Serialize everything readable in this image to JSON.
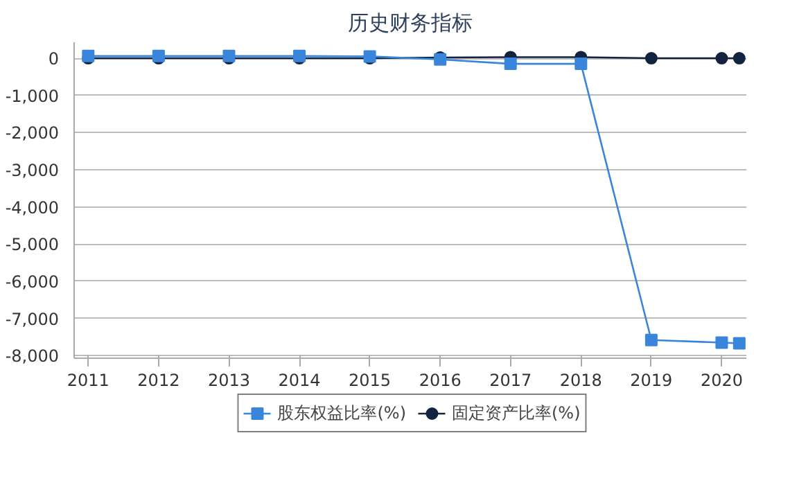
{
  "chart_data": {
    "type": "line",
    "title": "历史财务指标",
    "x": [
      2011,
      2012,
      2013,
      2014,
      2015,
      2016,
      2017,
      2018,
      2019,
      2020,
      2020.25
    ],
    "series": [
      {
        "name": "股东权益比率(%)",
        "color": "#3a85dc",
        "marker": "square",
        "values": [
          60,
          60,
          60,
          60,
          50,
          -30,
          -150,
          -150,
          -7580,
          -7650,
          -7670
        ]
      },
      {
        "name": "固定资产比率(%)",
        "color": "#12233f",
        "marker": "circle",
        "values": [
          0,
          0,
          0,
          0,
          0,
          20,
          30,
          30,
          0,
          0,
          0
        ]
      }
    ],
    "xlim": [
      2010.8,
      2020.35
    ],
    "xticks": [
      2011,
      2012,
      2013,
      2014,
      2015,
      2016,
      2017,
      2018,
      2019,
      2020
    ],
    "ylim": [
      -8070,
      430
    ],
    "yticks": [
      0,
      {
        "value": -1000,
        "label": "-1,000"
      },
      {
        "value": -2000,
        "label": "-2,000"
      },
      {
        "value": -3000,
        "label": "-3,000"
      },
      {
        "value": -4000,
        "label": "-4,000"
      },
      {
        "value": -5000,
        "label": "-5,000"
      },
      {
        "value": -6000,
        "label": "-6,000"
      },
      {
        "value": -7000,
        "label": "-7,000"
      },
      {
        "value": -8000,
        "label": "-8,000"
      }
    ],
    "grid": "y",
    "legend": "bottom",
    "line_style": "solid"
  }
}
